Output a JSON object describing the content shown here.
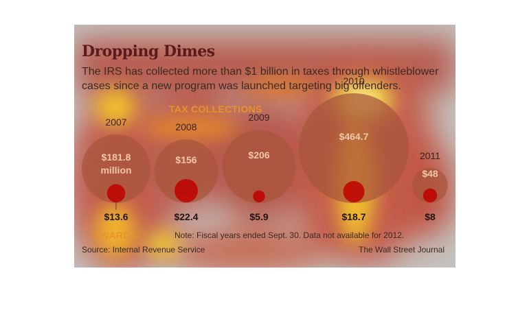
{
  "header": {
    "title": "Dropping Dimes",
    "subtitle": "The IRS has collected more than $1 billion in taxes through whistleblower cases since a new program was launched targeting big offenders."
  },
  "labels": {
    "tax_collections": "TAX COLLECTIONS",
    "awards": "AWARDS"
  },
  "footer": {
    "note": "Note: Fiscal years ended Sept. 30. Data not available for 2012.",
    "source": "Source: Internal Revenue Service",
    "credit": "The Wall Street Journal"
  },
  "colors": {
    "background": "#c4c2bf",
    "collection_circle": "#a8553c",
    "award_circle": "#c00000",
    "title": "#5b1a1c"
  },
  "chart_data": {
    "type": "bubble",
    "title": "Dropping Dimes",
    "series": [
      {
        "name": "TAX COLLECTIONS",
        "unit": "million"
      },
      {
        "name": "AWARDS"
      }
    ],
    "years": [
      {
        "year": "2007",
        "collections": 181.8,
        "collections_label": "$181.8",
        "collections_unit_label": "million",
        "award": 13.6,
        "award_label": "$13.6"
      },
      {
        "year": "2008",
        "collections": 156,
        "collections_label": "$156",
        "collections_unit_label": "",
        "award": 22.4,
        "award_label": "$22.4"
      },
      {
        "year": "2009",
        "collections": 206,
        "collections_label": "$206",
        "collections_unit_label": "",
        "award": 5.9,
        "award_label": "$5.9"
      },
      {
        "year": "2010",
        "collections": 464.7,
        "collections_label": "$464.7",
        "collections_unit_label": "",
        "award": 18.7,
        "award_label": "$18.7"
      },
      {
        "year": "2011",
        "collections": 48,
        "collections_label": "$48",
        "collections_unit_label": "",
        "award": 8,
        "award_label": "$8"
      }
    ]
  }
}
